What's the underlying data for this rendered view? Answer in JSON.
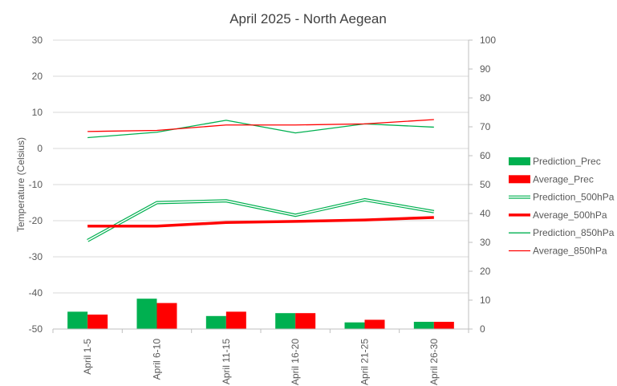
{
  "chart_data": {
    "type": "bar+line",
    "title": "April 2025 - North Aegean",
    "ylabel_left": "Temperature (Celsius)",
    "ylabel_right": "",
    "xlabel": "",
    "categories": [
      "April 1-5",
      "April 6-10",
      "April 11-15",
      "April 16-20",
      "April 21-25",
      "April 26-30"
    ],
    "ylim_left": [
      -50,
      30
    ],
    "ylim_right": [
      0,
      100
    ],
    "yticks_left": [
      30,
      20,
      10,
      0,
      -10,
      -20,
      -30,
      -40,
      -50
    ],
    "yticks_right": [
      100,
      90,
      80,
      70,
      60,
      50,
      40,
      30,
      20,
      10,
      0
    ],
    "grid": true,
    "legend_position": "right",
    "series": [
      {
        "name": "Prediction_Prec",
        "kind": "bar",
        "axis": "right",
        "color": "#00b050",
        "values": [
          6,
          10.5,
          4.5,
          5.5,
          2.3,
          2.5
        ]
      },
      {
        "name": "Average_Prec",
        "kind": "bar",
        "axis": "right",
        "color": "#ff0000",
        "values": [
          5,
          9,
          6,
          5.5,
          3.2,
          2.5
        ]
      },
      {
        "name": "Prediction_500hPa",
        "kind": "line",
        "style": "double",
        "axis": "left",
        "color": "#00b050",
        "values": [
          -25.5,
          -15,
          -14.5,
          -18.5,
          -14.2,
          -17.5
        ]
      },
      {
        "name": "Average_500hPa",
        "kind": "line",
        "style": "thick",
        "axis": "left",
        "color": "#ff0000",
        "values": [
          -21.5,
          -21.5,
          -20.5,
          -20.2,
          -19.8,
          -19.1
        ]
      },
      {
        "name": "Prediction_850hPa",
        "kind": "line",
        "style": "thin",
        "axis": "left",
        "color": "#00b050",
        "values": [
          3,
          4.5,
          7.8,
          4.3,
          6.8,
          5.9
        ]
      },
      {
        "name": "Average_850hPa",
        "kind": "line",
        "style": "thin",
        "axis": "left",
        "color": "#ff0000",
        "values": [
          4.7,
          5,
          6.5,
          6.5,
          6.8,
          8
        ]
      }
    ]
  }
}
